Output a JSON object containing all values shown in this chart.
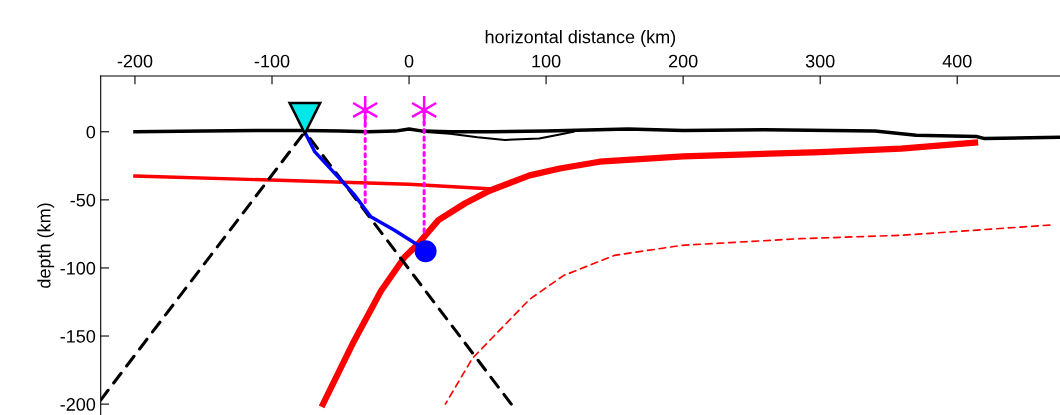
{
  "chart_data": {
    "type": "line",
    "xlabel": "horizontal distance (km)",
    "ylabel": "depth (km)",
    "xlim": [
      -225,
      475
    ],
    "ylim": [
      -208,
      41
    ],
    "xticks": [
      -200,
      -100,
      0,
      100,
      200,
      300,
      400
    ],
    "yticks": [
      0,
      -50,
      -100,
      -150,
      -200
    ],
    "grid": false,
    "legend": false,
    "series": [
      {
        "color": "#000000",
        "line_style": "solid",
        "x": [
          -200,
          -150,
          -100,
          -76,
          -50,
          -30,
          -10,
          0,
          10,
          30,
          60,
          100,
          160,
          200,
          260,
          340,
          370,
          414,
          420,
          475
        ],
        "values": [
          0,
          0.5,
          1,
          1,
          0.5,
          0,
          0.5,
          2,
          0.5,
          0,
          0,
          0.5,
          2,
          1,
          1.5,
          0.5,
          -2.5,
          -3.5,
          -5,
          -4
        ]
      },
      {
        "color": "#000000",
        "line_style": "solid",
        "x": [
          10,
          30,
          50,
          70,
          95,
          110,
          120
        ],
        "values": [
          0,
          -1.5,
          -4,
          -6,
          -5,
          -2,
          0
        ]
      },
      {
        "color": "#ff0000",
        "line_style": "solid",
        "x": [
          -200,
          0,
          60
        ],
        "values": [
          -32.5,
          -38.5,
          -42
        ]
      },
      {
        "color": "#ff0000",
        "line_style": "solid",
        "x": [
          -62.8,
          -40.3,
          -20.5,
          -3.2,
          6.7,
          21.4,
          41,
          58.7,
          88,
          110,
          139,
          200,
          300,
          359,
          413
        ],
        "values": [
          -200,
          -154,
          -116.9,
          -92,
          -82.2,
          -64.9,
          -52.5,
          -43.3,
          -32,
          -27,
          -22,
          -18,
          -15,
          -12.3,
          -8
        ]
      },
      {
        "color": "#ff0000",
        "line_style": "dashed",
        "x": [
          26.5,
          46.2,
          88,
          112.7,
          149.7,
          199,
          285.5,
          359.8,
          467.6
        ],
        "values": [
          -200,
          -166.4,
          -123,
          -105.6,
          -90.8,
          -83.4,
          -78.5,
          -76,
          -68.5
        ]
      },
      {
        "color": "#000000",
        "line_style": "dashed",
        "x": [
          -76,
          -225
        ],
        "values": [
          0,
          -197
        ]
      },
      {
        "color": "#000000",
        "line_style": "dashed",
        "x": [
          -76,
          74.6
        ],
        "values": [
          0,
          -200
        ]
      },
      {
        "color": "#ff00ff",
        "line_style": "dotted",
        "x": [
          -32,
          -32
        ],
        "values": [
          16,
          -52
        ]
      },
      {
        "color": "#ff00ff",
        "line_style": "dotted",
        "x": [
          11,
          11
        ],
        "values": [
          16,
          -73.5
        ]
      },
      {
        "color": "#0000ff",
        "line_style": "solid",
        "x": [
          -76.2,
          -68.7,
          -52.7,
          -40.3,
          -27.9,
          -10.6,
          6.7,
          12.1
        ],
        "values": [
          0,
          -14.8,
          -32.2,
          -45.8,
          -62.4,
          -72.3,
          -83.4,
          -87.7
        ]
      },
      {
        "type": "scatter",
        "color": "#0000ff",
        "marker": "circle",
        "x": [
          12.1
        ],
        "values": [
          -87.7
        ]
      },
      {
        "type": "scatter",
        "color": "#ff00ff",
        "marker": "cross",
        "x": [
          -32,
          11
        ],
        "values": [
          16,
          16
        ]
      },
      {
        "type": "scatter",
        "color": "#00e8e8",
        "marker": "triangle",
        "x": [
          -76
        ],
        "values": [
          10
        ]
      }
    ]
  }
}
